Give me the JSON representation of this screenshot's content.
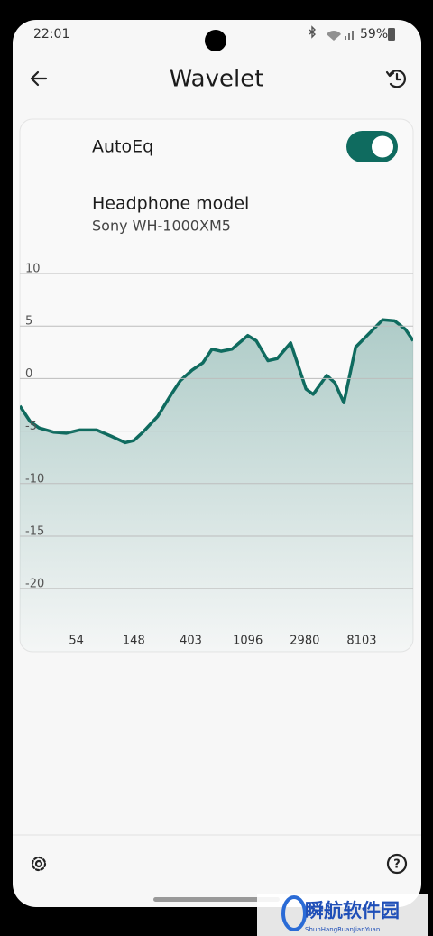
{
  "status_bar": {
    "time": "22:01",
    "battery": "59%"
  },
  "header": {
    "title": "Wavelet"
  },
  "autoeq": {
    "label": "AutoEq",
    "enabled": true
  },
  "headphone": {
    "label": "Headphone model",
    "model": "Sony WH-1000XM5"
  },
  "chart_data": {
    "type": "area",
    "color": "#0f6b5f",
    "xscale": "log",
    "grid": true,
    "x": [
      20,
      24,
      28,
      36,
      45,
      57,
      77,
      100,
      127,
      148,
      177,
      225,
      286,
      335,
      412,
      498,
      584,
      685,
      829,
      1096,
      1271,
      1564,
      1833,
      2325,
      3043,
      3458,
      4385,
      5057,
      5925,
      7289,
      9245,
      11730,
      14430,
      17450,
      20000
    ],
    "values": [
      -2.6,
      -4.1,
      -4.7,
      -5.1,
      -5.2,
      -4.9,
      -4.9,
      -5.5,
      -6.1,
      -5.9,
      -5.0,
      -3.6,
      -1.5,
      -0.2,
      0.8,
      1.5,
      2.8,
      2.6,
      2.8,
      4.1,
      3.6,
      1.7,
      1.9,
      3.4,
      -1.0,
      -1.5,
      0.3,
      -0.4,
      -2.3,
      3.0,
      4.3,
      5.6,
      5.5,
      4.7,
      3.6
    ],
    "xlim": [
      20,
      20000
    ],
    "xticks": [
      54,
      148,
      403,
      1096,
      2980,
      8103
    ],
    "ylim": [
      -26,
      10
    ],
    "yticks": [
      10,
      5,
      0,
      -5,
      -10,
      -15,
      -20
    ]
  },
  "watermark": {
    "name": "瞬航软件园",
    "pinyin": "ShunHangRuanJianYuan"
  }
}
